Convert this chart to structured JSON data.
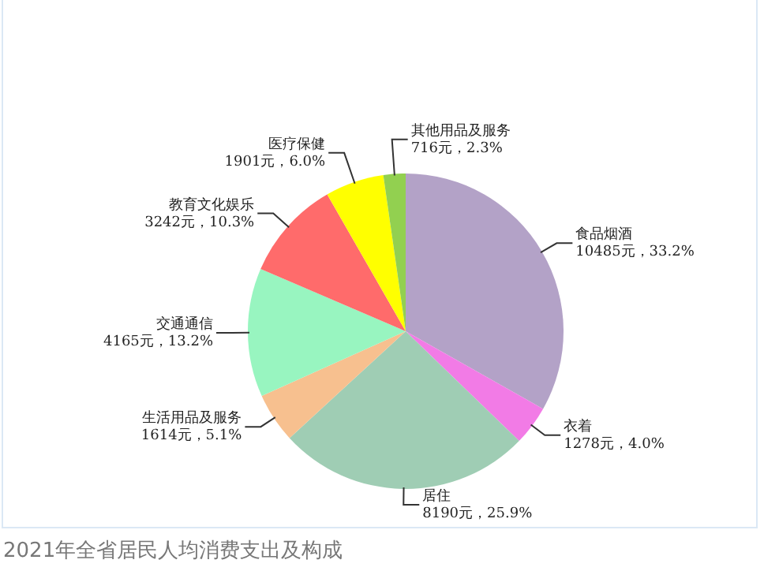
{
  "chart_data": {
    "type": "pie",
    "title": "2021年全省居民人均消费支出及构成",
    "categories": [
      "食品烟酒",
      "衣着",
      "居住",
      "生活用品及服务",
      "交通通信",
      "教育文化娱乐",
      "医疗保健",
      "其他用品及服务"
    ],
    "values": [
      10485,
      1278,
      8190,
      1614,
      4165,
      3242,
      1901,
      716
    ],
    "colors": [
      "#b3a2c7",
      "#f27be6",
      "#9fcdb4",
      "#f7c08f",
      "#98f5c0",
      "#ff6b6b",
      "#ffff00",
      "#92d050"
    ],
    "value_labels": [
      "10485元，33.2%",
      "1278元，4.0%",
      "8190元，25.9%",
      "1614元，5.1%",
      "4165元，13.2%",
      "3242元，10.3%",
      "1901元，6.0%",
      "716元，2.3%"
    ]
  }
}
